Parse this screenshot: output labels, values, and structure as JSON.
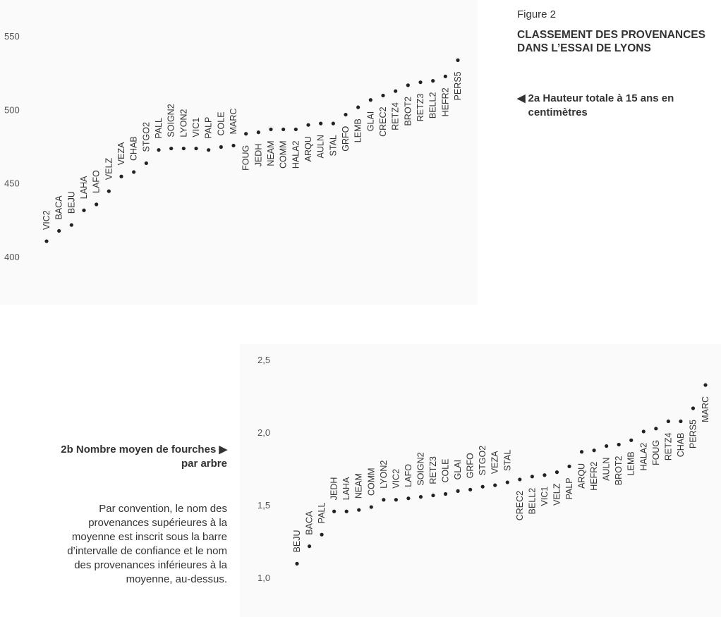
{
  "figure": {
    "number": "Figure 2",
    "title_lines": [
      "CLASSEMENT DES PROVENANCES",
      "DANS L’ESSAI DE LYONS"
    ],
    "panel_a_pointer": "◀",
    "panel_a_caption": "2a  Hauteur totale à 15 ans en centimètres",
    "panel_b_caption_lines": [
      "2b  Nombre moyen de fourches ▶",
      "par arbre"
    ],
    "note_lines": [
      "Par convention, le nom des",
      "provenances supérieures à la",
      "moyenne est inscrit sous la barre",
      "d’intervalle de confiance et le nom",
      "des provenances inférieures à la",
      "moyenne, au-dessus."
    ]
  },
  "chart_data": [
    {
      "type": "scatter",
      "id": "2a",
      "title": "",
      "xlabel": "",
      "ylabel": "",
      "ylim": [
        400,
        550
      ],
      "yticks": [
        "400",
        "450",
        "500",
        "550"
      ],
      "grid": false,
      "points": [
        {
          "label": "VIC2",
          "value": 411,
          "label_pos": "above"
        },
        {
          "label": "BACA",
          "value": 418,
          "label_pos": "above"
        },
        {
          "label": "BEJU",
          "value": 422,
          "label_pos": "above"
        },
        {
          "label": "LAHA",
          "value": 432,
          "label_pos": "above"
        },
        {
          "label": "LAFO",
          "value": 436,
          "label_pos": "above"
        },
        {
          "label": "VELZ",
          "value": 445,
          "label_pos": "above"
        },
        {
          "label": "VEZA",
          "value": 455,
          "label_pos": "above"
        },
        {
          "label": "CHAB",
          "value": 458,
          "label_pos": "above"
        },
        {
          "label": "STGO2",
          "value": 464,
          "label_pos": "above"
        },
        {
          "label": "PALL",
          "value": 473,
          "label_pos": "above"
        },
        {
          "label": "SOIGN2",
          "value": 474,
          "label_pos": "above"
        },
        {
          "label": "LYON2",
          "value": 474,
          "label_pos": "above"
        },
        {
          "label": "VIC1",
          "value": 474,
          "label_pos": "above"
        },
        {
          "label": "PALP",
          "value": 473,
          "label_pos": "above"
        },
        {
          "label": "COLE",
          "value": 475,
          "label_pos": "above"
        },
        {
          "label": "MARC",
          "value": 476,
          "label_pos": "above"
        },
        {
          "label": "FOUG",
          "value": 484,
          "label_pos": "below"
        },
        {
          "label": "JEDH",
          "value": 485,
          "label_pos": "below"
        },
        {
          "label": "NEAM",
          "value": 487,
          "label_pos": "below"
        },
        {
          "label": "COMM",
          "value": 487,
          "label_pos": "below"
        },
        {
          "label": "HALA2",
          "value": 487,
          "label_pos": "below"
        },
        {
          "label": "ARQU",
          "value": 490,
          "label_pos": "below"
        },
        {
          "label": "AULN",
          "value": 491,
          "label_pos": "below"
        },
        {
          "label": "STAL",
          "value": 491,
          "label_pos": "below"
        },
        {
          "label": "GRFO",
          "value": 497,
          "label_pos": "below"
        },
        {
          "label": "LEMB",
          "value": 502,
          "label_pos": "below"
        },
        {
          "label": "GLAI",
          "value": 507,
          "label_pos": "below"
        },
        {
          "label": "CREC2",
          "value": 510,
          "label_pos": "below"
        },
        {
          "label": "RETZ4",
          "value": 513,
          "label_pos": "below"
        },
        {
          "label": "BROT2",
          "value": 517,
          "label_pos": "below"
        },
        {
          "label": "RETZ3",
          "value": 519,
          "label_pos": "below"
        },
        {
          "label": "BELL2",
          "value": 520,
          "label_pos": "below"
        },
        {
          "label": "HEFR2",
          "value": 523,
          "label_pos": "below"
        },
        {
          "label": "PERS5",
          "value": 534,
          "label_pos": "below"
        }
      ]
    },
    {
      "type": "scatter",
      "id": "2b",
      "title": "",
      "xlabel": "",
      "ylabel": "",
      "ylim": [
        1.0,
        2.5
      ],
      "yticks": [
        "1,0",
        "1,5",
        "2,0",
        "2,5"
      ],
      "grid": false,
      "points": [
        {
          "label": "BEJU",
          "value": 1.1,
          "label_pos": "above"
        },
        {
          "label": "BACA",
          "value": 1.22,
          "label_pos": "above"
        },
        {
          "label": "PALL",
          "value": 1.3,
          "label_pos": "above"
        },
        {
          "label": "JEDH",
          "value": 1.46,
          "label_pos": "above"
        },
        {
          "label": "LAHA",
          "value": 1.46,
          "label_pos": "above"
        },
        {
          "label": "NEAM",
          "value": 1.47,
          "label_pos": "above"
        },
        {
          "label": "COMM",
          "value": 1.49,
          "label_pos": "above"
        },
        {
          "label": "LYON2",
          "value": 1.54,
          "label_pos": "above"
        },
        {
          "label": "VIC2",
          "value": 1.54,
          "label_pos": "above"
        },
        {
          "label": "LAFO",
          "value": 1.55,
          "label_pos": "above"
        },
        {
          "label": "SOIGN2",
          "value": 1.56,
          "label_pos": "above"
        },
        {
          "label": "RETZ3",
          "value": 1.57,
          "label_pos": "above"
        },
        {
          "label": "COLE",
          "value": 1.58,
          "label_pos": "above"
        },
        {
          "label": "GLAI",
          "value": 1.6,
          "label_pos": "above"
        },
        {
          "label": "GRFO",
          "value": 1.61,
          "label_pos": "above"
        },
        {
          "label": "STGO2",
          "value": 1.63,
          "label_pos": "above"
        },
        {
          "label": "VEZA",
          "value": 1.64,
          "label_pos": "above"
        },
        {
          "label": "STAL",
          "value": 1.66,
          "label_pos": "above"
        },
        {
          "label": "CREC2",
          "value": 1.68,
          "label_pos": "below"
        },
        {
          "label": "BELL2",
          "value": 1.7,
          "label_pos": "below"
        },
        {
          "label": "VIC1",
          "value": 1.71,
          "label_pos": "below"
        },
        {
          "label": "VELZ",
          "value": 1.73,
          "label_pos": "below"
        },
        {
          "label": "PALP",
          "value": 1.77,
          "label_pos": "below"
        },
        {
          "label": "ARQU",
          "value": 1.87,
          "label_pos": "below"
        },
        {
          "label": "HEFR2",
          "value": 1.88,
          "label_pos": "below"
        },
        {
          "label": "AULN",
          "value": 1.91,
          "label_pos": "below"
        },
        {
          "label": "BROT2",
          "value": 1.92,
          "label_pos": "below"
        },
        {
          "label": "LEMB",
          "value": 1.95,
          "label_pos": "below"
        },
        {
          "label": "HALA2",
          "value": 2.01,
          "label_pos": "below"
        },
        {
          "label": "FOUG",
          "value": 2.03,
          "label_pos": "below"
        },
        {
          "label": "RETZ4",
          "value": 2.08,
          "label_pos": "below"
        },
        {
          "label": "CHAB",
          "value": 2.08,
          "label_pos": "below"
        },
        {
          "label": "PERS5",
          "value": 2.17,
          "label_pos": "below"
        },
        {
          "label": "MARC",
          "value": 2.33,
          "label_pos": "below"
        }
      ]
    }
  ]
}
